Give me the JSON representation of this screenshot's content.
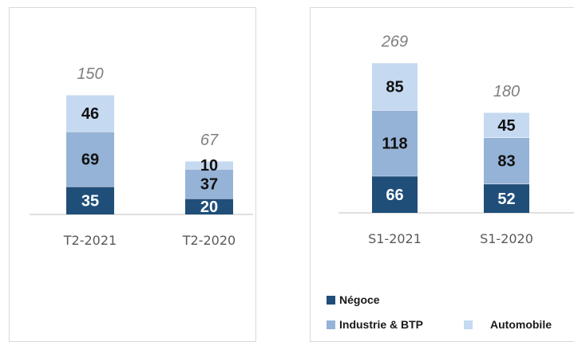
{
  "colors": {
    "negoce": "#1f4e79",
    "industrie": "#95b3d7",
    "automobile": "#c5d9f1",
    "axis": "#bfbfbf",
    "total_text": "#7f7f7f",
    "tick_text": "#595959"
  },
  "chart_data": [
    {
      "type": "bar",
      "stacked": true,
      "categories": [
        "T2-2021",
        "T2-2020"
      ],
      "series": [
        {
          "name": "Négoce",
          "values": [
            35,
            20
          ]
        },
        {
          "name": "Industrie & BTP",
          "values": [
            69,
            37
          ]
        },
        {
          "name": "Automobile",
          "values": [
            46,
            10
          ]
        }
      ],
      "totals": [
        "150",
        "67"
      ],
      "ylim": [
        0,
        170
      ],
      "grid": false
    },
    {
      "type": "bar",
      "stacked": true,
      "categories": [
        "S1-2021",
        "S1-2020"
      ],
      "series": [
        {
          "name": "Négoce",
          "values": [
            66,
            52
          ]
        },
        {
          "name": "Industrie & BTP",
          "values": [
            118,
            83
          ]
        },
        {
          "name": "Automobile",
          "values": [
            85,
            45
          ]
        }
      ],
      "totals": [
        "269",
        "180"
      ],
      "ylim": [
        0,
        300
      ],
      "grid": false,
      "legend": "bottom"
    }
  ],
  "legend": {
    "negoce": "Négoce",
    "industrie": "Industrie & BTP",
    "automobile": "Automobile"
  }
}
